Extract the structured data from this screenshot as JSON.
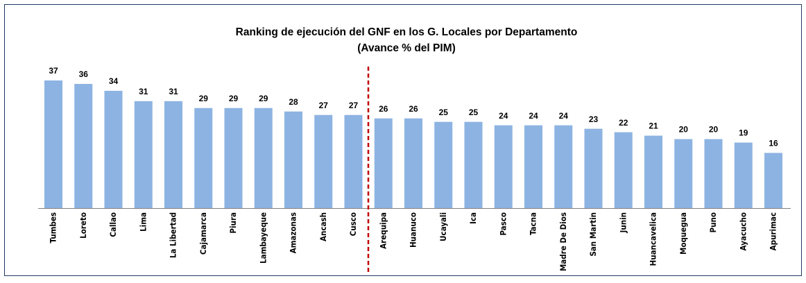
{
  "chart_data": {
    "type": "bar",
    "title": "Ranking de ejecución del GNF en los G. Locales por Departamento",
    "subtitle": "(Avance % del PIM)",
    "categories": [
      "Tumbes",
      "Loreto",
      "Callao",
      "Lima",
      "La Libertad",
      "Cajamarca",
      "Piura",
      "Lambayeque",
      "Amazonas",
      "Ancash",
      "Cusco",
      "Arequipa",
      "Huanuco",
      "Ucayali",
      "Ica",
      "Pasco",
      "Tacna",
      "Madre De Dios",
      "San Martin",
      "Junin",
      "Huancavelica",
      "Moquegua",
      "Puno",
      "Ayacucho",
      "Apurimac"
    ],
    "values": [
      37,
      36,
      34,
      31,
      31,
      29,
      29,
      29,
      28,
      27,
      27,
      26,
      26,
      25,
      25,
      24,
      24,
      24,
      23,
      22,
      21,
      20,
      20,
      19,
      16
    ],
    "color": "#8db3e2"
  }
}
